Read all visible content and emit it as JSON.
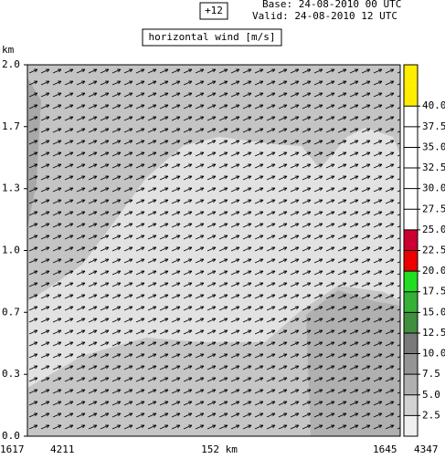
{
  "chart_data": {
    "type": "cross-section",
    "lead": "+12",
    "base": "Base: 24-08-2010  00 UTC",
    "valid": "Valid: 24-08-2010  12 UTC",
    "title": "horizontal wind [m/s]",
    "y_label": "km",
    "ylim": [
      0,
      2.0
    ],
    "yticks": [
      {
        "value": 0,
        "label": "0.0"
      },
      {
        "value": 0.333,
        "label": "0.3"
      },
      {
        "value": 0.667,
        "label": "0.7"
      },
      {
        "value": 1.0,
        "label": "1.0"
      },
      {
        "value": 1.333,
        "label": "1.3"
      },
      {
        "value": 1.667,
        "label": "1.7"
      },
      {
        "value": 2.0,
        "label": "2.0"
      }
    ],
    "x_labels": [
      "1617",
      "4211",
      "152 km",
      "1645",
      "4347"
    ],
    "colorbar": {
      "lim": [
        0,
        45
      ],
      "bins": [
        0,
        2.5,
        5,
        7.5,
        10,
        12.5,
        15,
        17.5,
        20,
        22.5,
        25,
        27.5,
        30,
        32.5,
        35,
        37.5,
        40,
        42.5,
        45
      ],
      "colors": [
        "#efefef",
        "#d2d2d2",
        "#b0b0b0",
        "#959595",
        "#7a7a7a",
        "#3f8f3f",
        "#36b036",
        "#22dd22",
        "#ee0000",
        "#cc0033",
        "#ffffff",
        "#ffffff",
        "#ffffff",
        "#ffffff",
        "#ffffff",
        "#ffffff",
        "#ffee00",
        "#ffee00"
      ],
      "ticks": [
        {
          "value": 2.5,
          "label": "2.5"
        },
        {
          "value": 5,
          "label": "5.0"
        },
        {
          "value": 7.5,
          "label": "7.5"
        },
        {
          "value": 10,
          "label": "10.0"
        },
        {
          "value": 12.5,
          "label": "12.5"
        },
        {
          "value": 15,
          "label": "15.0"
        },
        {
          "value": 17.5,
          "label": "17.5"
        },
        {
          "value": 20,
          "label": "20.0"
        },
        {
          "value": 22.5,
          "label": "22.5"
        },
        {
          "value": 25,
          "label": "25.0"
        },
        {
          "value": 27.5,
          "label": "27.5"
        },
        {
          "value": 30,
          "label": "30.0"
        },
        {
          "value": 32.5,
          "label": "32.5"
        },
        {
          "value": 35,
          "label": "35.0"
        },
        {
          "value": 37.5,
          "label": "37.5"
        },
        {
          "value": 40,
          "label": "40.0"
        }
      ]
    }
  }
}
